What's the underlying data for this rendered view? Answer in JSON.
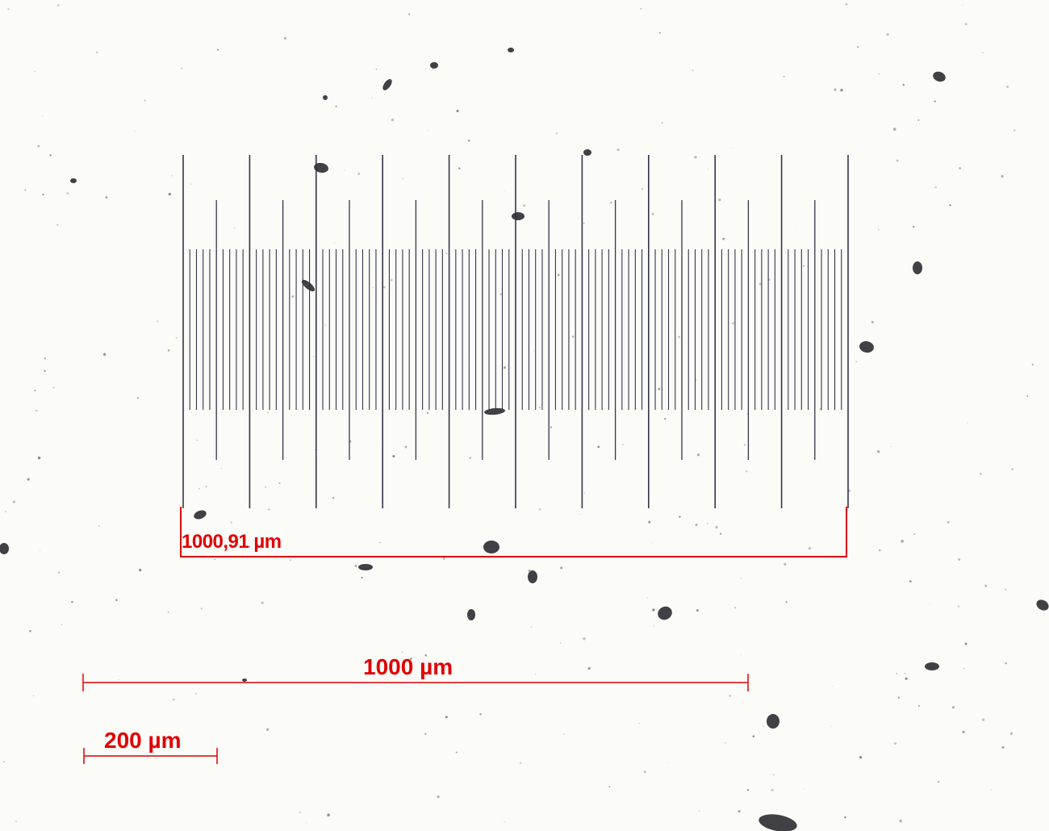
{
  "annotation_color": "#e00000",
  "measurement": {
    "label": "1000,91 µm",
    "value": 1000.91,
    "unit": "µm"
  },
  "scale_bars": [
    {
      "id": "bar-1000",
      "label": "1000 µm",
      "length_um": 1000
    },
    {
      "id": "bar-200",
      "label": "200 µm",
      "length_um": 200
    }
  ],
  "micrometer": {
    "divisions": 100,
    "minor_step_um": 10,
    "major_every": 10,
    "mid_every": 5
  }
}
